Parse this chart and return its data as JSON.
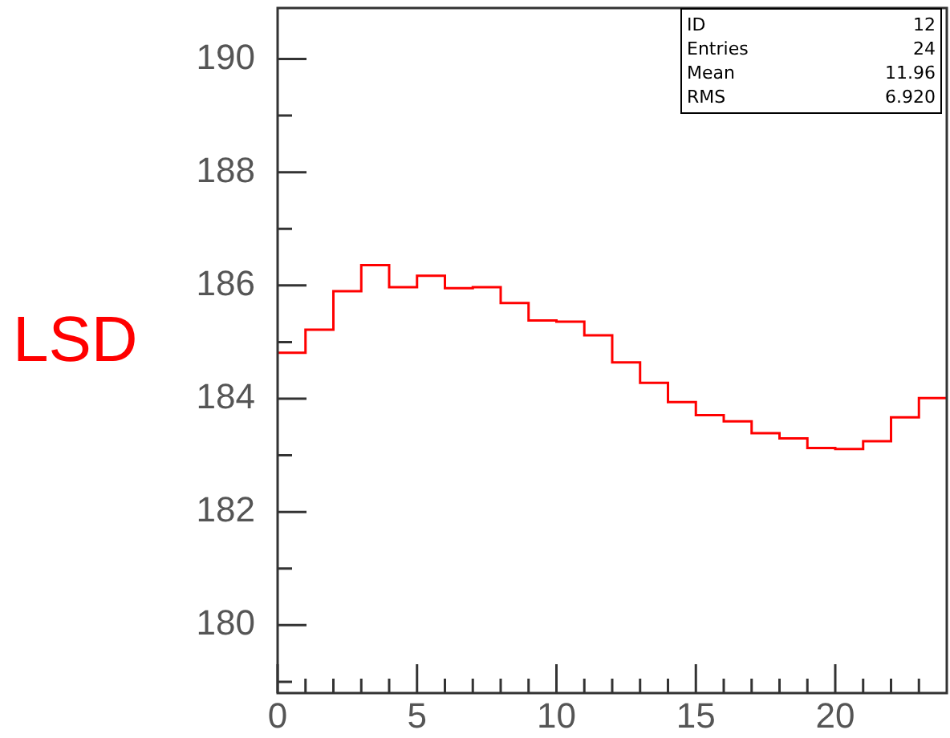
{
  "chart_data": {
    "type": "histogram",
    "ylabel": "LSD",
    "bins": [
      0,
      1,
      2,
      3,
      4,
      5,
      6,
      7,
      8,
      9,
      10,
      11,
      12,
      13,
      14,
      15,
      16,
      17,
      18,
      19,
      20,
      21,
      22,
      23,
      24
    ],
    "values": [
      184.81,
      185.22,
      185.9,
      186.36,
      185.97,
      186.17,
      185.95,
      185.97,
      185.69,
      185.38,
      185.36,
      185.12,
      184.64,
      184.28,
      183.94,
      183.71,
      183.6,
      183.39,
      183.3,
      183.13,
      183.11,
      183.25,
      183.67,
      184.01
    ],
    "color": "#ff0000",
    "xlim": [
      0,
      24
    ],
    "ylim": [
      178.8,
      190.9
    ],
    "xticks": [
      0,
      {
        "value": 1,
        "label": null
      },
      {
        "value": 2,
        "label": null
      },
      {
        "value": 3,
        "label": null
      },
      {
        "value": 4,
        "label": null
      },
      5,
      {
        "value": 6,
        "label": null
      },
      {
        "value": 7,
        "label": null
      },
      {
        "value": 8,
        "label": null
      },
      {
        "value": 9,
        "label": null
      },
      10,
      {
        "value": 11,
        "label": null
      },
      {
        "value": 12,
        "label": null
      },
      {
        "value": 13,
        "label": null
      },
      {
        "value": 14,
        "label": null
      },
      15,
      {
        "value": 16,
        "label": null
      },
      {
        "value": 17,
        "label": null
      },
      {
        "value": 18,
        "label": null
      },
      {
        "value": 19,
        "label": null
      },
      20,
      {
        "value": 21,
        "label": null
      },
      {
        "value": 22,
        "label": null
      },
      {
        "value": 23,
        "label": null
      }
    ],
    "yticks": [
      {
        "value": 179,
        "label": null
      },
      180,
      {
        "value": 181,
        "label": null
      },
      182,
      {
        "value": 183,
        "label": null
      },
      184,
      {
        "value": 185,
        "label": null
      },
      186,
      {
        "value": 187,
        "label": null
      },
      188,
      {
        "value": 189,
        "label": null
      },
      190
    ],
    "annotations": [
      "ID 12",
      "Entries 24",
      "Mean 11.96",
      "RMS 6.920"
    ],
    "grid": false,
    "legend": false
  }
}
